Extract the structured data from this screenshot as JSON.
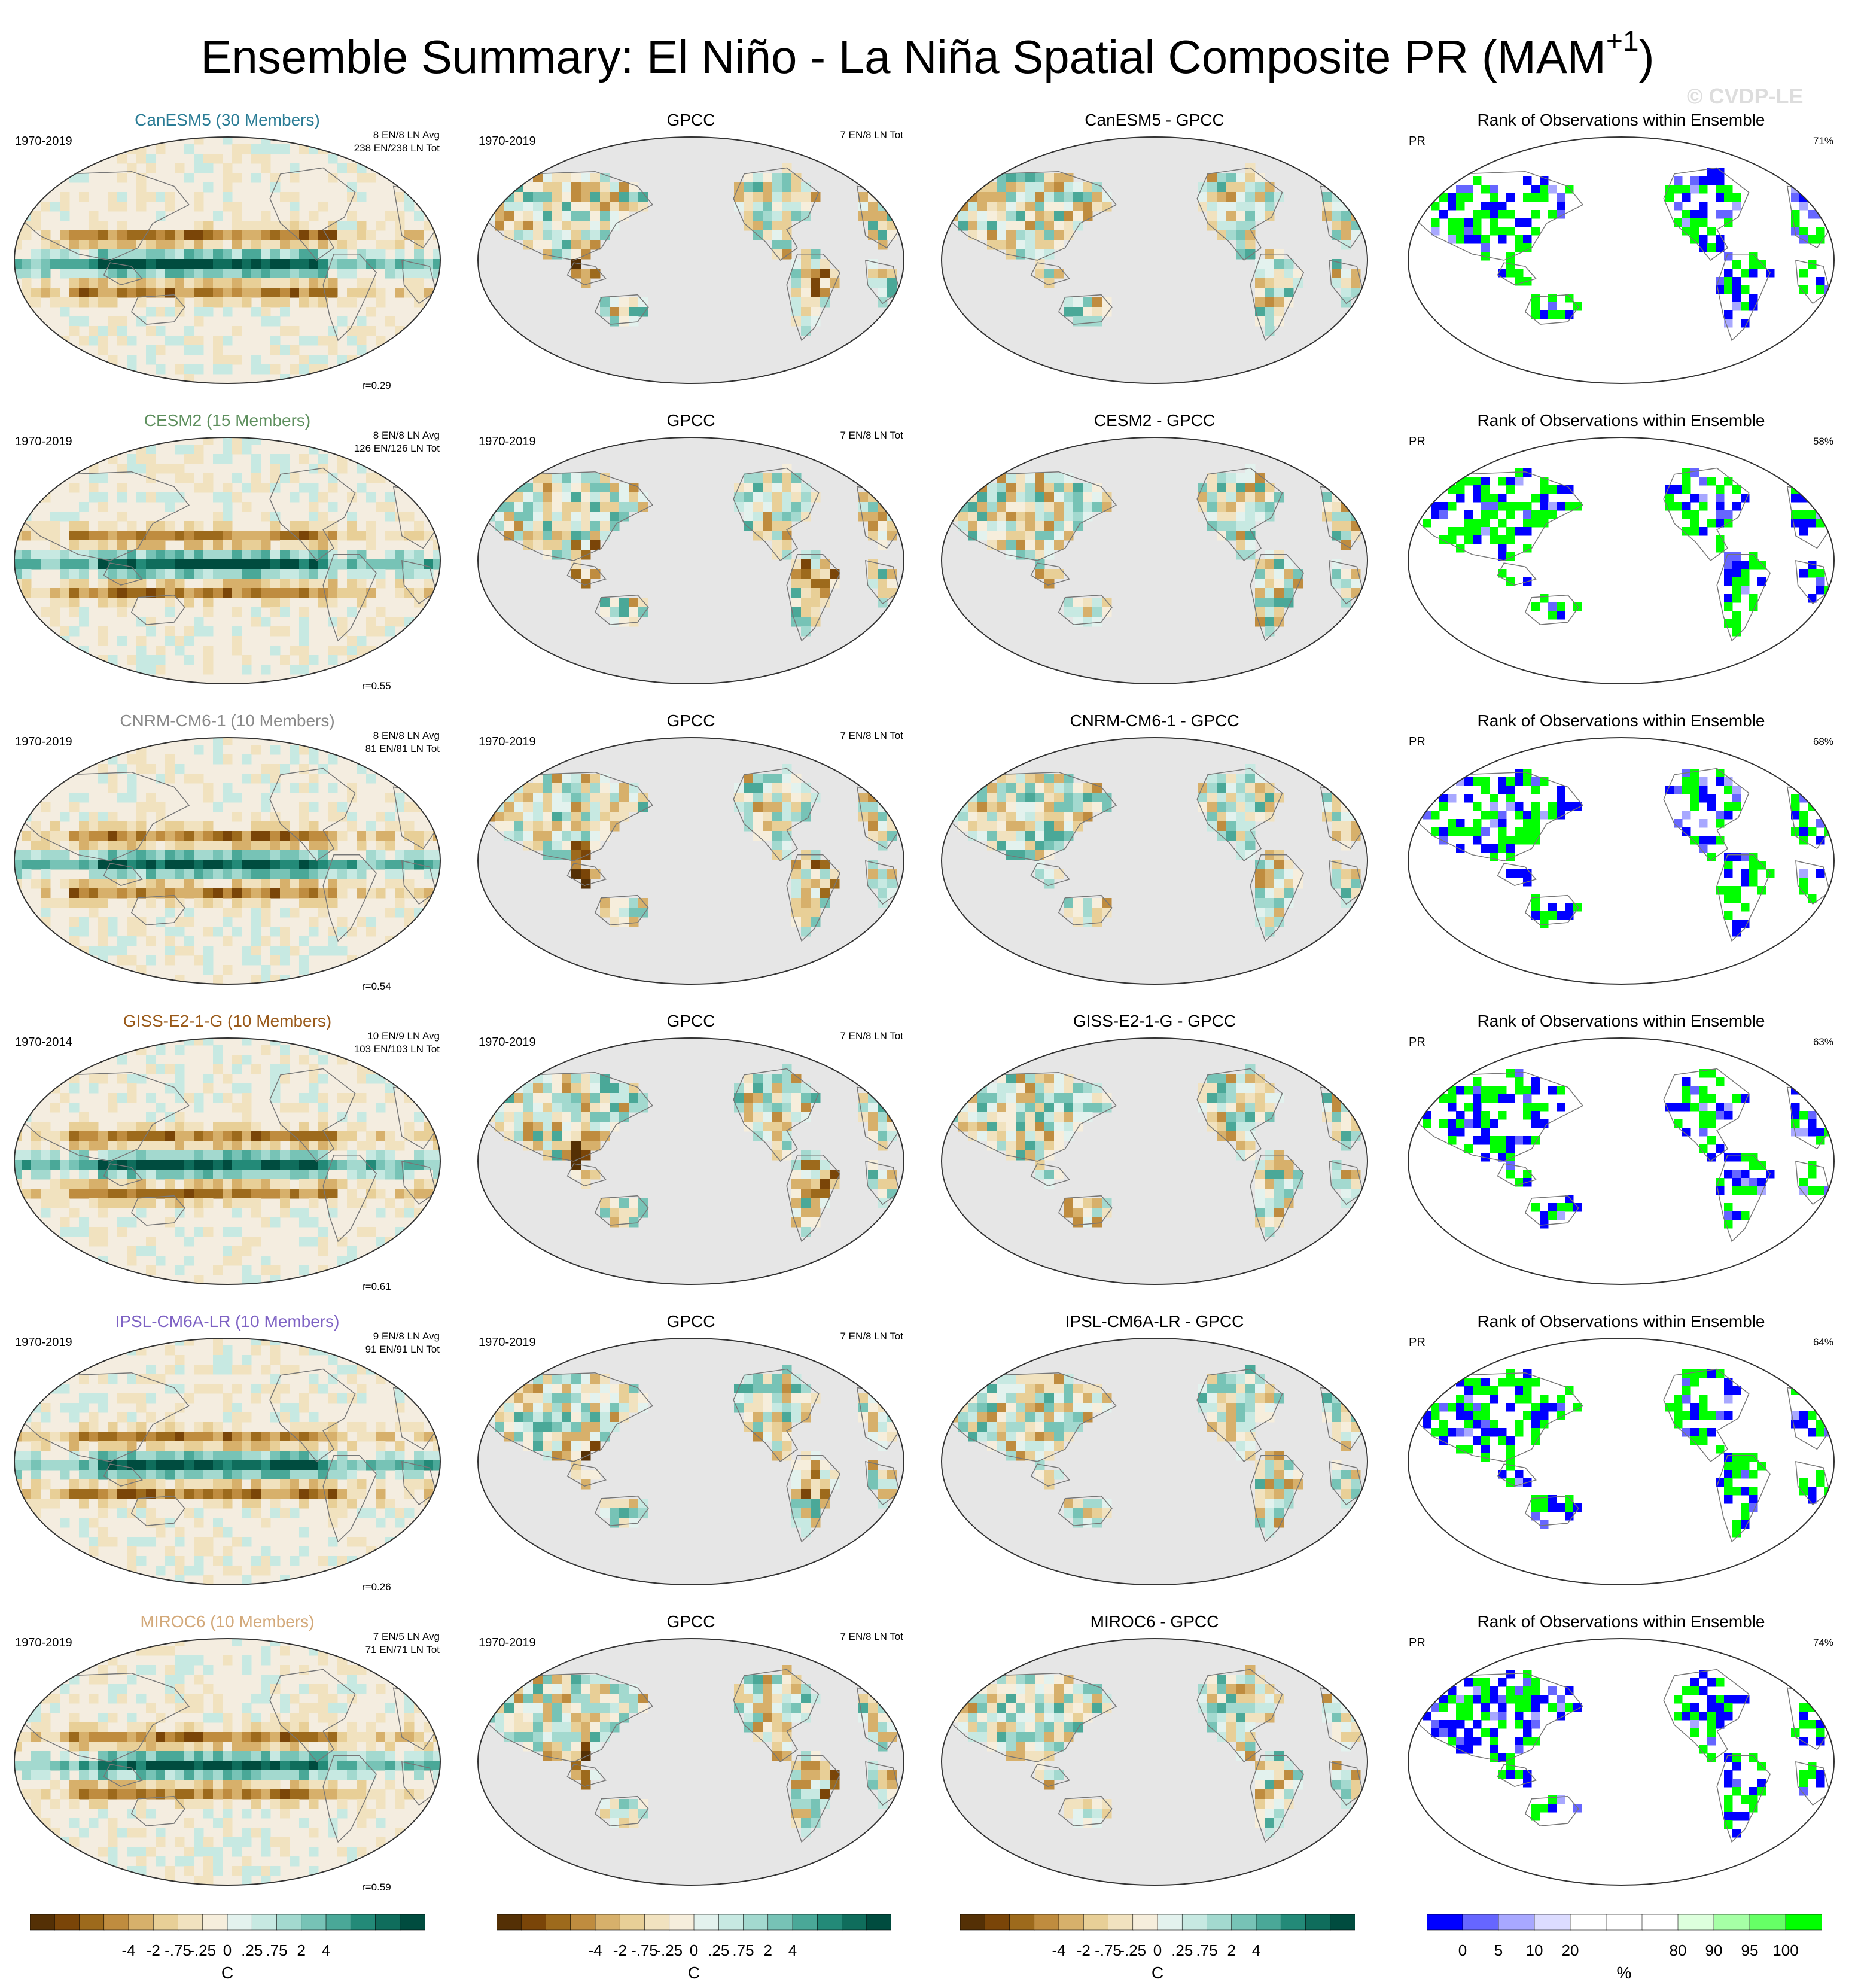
{
  "title": "Ensemble Summary: El Niño - La Niña Spatial Composite PR (MAM",
  "title_sup": "+1",
  "title_close": ")",
  "watermark": "© CVDP-LE",
  "obs_name": "GPCC",
  "obs_period": "1970-2019",
  "obs_count": "7 EN/8 LN Tot",
  "rank_title": "Rank of Observations within Ensemble",
  "rank_var": "PR",
  "rows": [
    {
      "model": "CanESM5",
      "members": "CanESM5 (30 Members)",
      "color": "#2a7c95",
      "period": "1970-2019",
      "avg": "8 EN/8 LN Avg",
      "tot": "238 EN/238 LN Tot",
      "r": "r=0.29",
      "diff": "CanESM5 - GPCC",
      "rank": "71%"
    },
    {
      "model": "CESM2",
      "members": "CESM2 (15 Members)",
      "color": "#5d8f5d",
      "period": "1970-2019",
      "avg": "8 EN/8 LN Avg",
      "tot": "126 EN/126 LN Tot",
      "r": "r=0.55",
      "diff": "CESM2 - GPCC",
      "rank": "58%"
    },
    {
      "model": "CNRM-CM6-1",
      "members": "CNRM-CM6-1 (10 Members)",
      "color": "#8a8a8a",
      "period": "1970-2019",
      "avg": "8 EN/8 LN Avg",
      "tot": "81 EN/81 LN Tot",
      "r": "r=0.54",
      "diff": "CNRM-CM6-1 - GPCC",
      "rank": "68%"
    },
    {
      "model": "GISS-E2-1-G",
      "members": "GISS-E2-1-G (10 Members)",
      "color": "#9a5a1a",
      "period": "1970-2014",
      "avg": "10 EN/9 LN Avg",
      "tot": "103 EN/103 LN Tot",
      "r": "r=0.61",
      "diff": "GISS-E2-1-G - GPCC",
      "rank": "63%"
    },
    {
      "model": "IPSL-CM6A-LR",
      "members": "IPSL-CM6A-LR (10 Members)",
      "color": "#7e62c4",
      "period": "1970-2019",
      "avg": "9 EN/8 LN Avg",
      "tot": "91 EN/91 LN Tot",
      "r": "r=0.26",
      "diff": "IPSL-CM6A-LR - GPCC",
      "rank": "64%"
    },
    {
      "model": "MIROC6",
      "members": "MIROC6 (10 Members)",
      "color": "#d3a97a",
      "period": "1970-2019",
      "avg": "7 EN/5 LN Avg",
      "tot": "71 EN/71 LN Tot",
      "r": "r=0.59",
      "diff": "MIROC6 - GPCC",
      "rank": "74%"
    }
  ],
  "colorbar": {
    "ticks": [
      "-4",
      "-2",
      "-.75",
      "-.25",
      "0",
      ".25",
      ".75",
      "2",
      "4"
    ],
    "unit": "C",
    "colors": [
      "#543005",
      "#7a4508",
      "#9d6a1c",
      "#bf8c3f",
      "#d7b06b",
      "#e8cf97",
      "#f1e2bf",
      "#f6eedc",
      "#e3f2ee",
      "#c7e9e2",
      "#a3d9cf",
      "#77c3b6",
      "#4aa898",
      "#238a78",
      "#0f6d5c",
      "#004c3f"
    ]
  },
  "rankbar": {
    "ticks": [
      "0",
      "5",
      "10",
      "20",
      "80",
      "90",
      "95",
      "100"
    ],
    "unit": "%",
    "colors": [
      "#0000ff",
      "#6666ff",
      "#a8a8ff",
      "#dcdcff",
      "#ffffff",
      "#ffffff",
      "#ffffff",
      "#ddffdd",
      "#a6ffa6",
      "#66ff66",
      "#00ff00"
    ]
  }
}
